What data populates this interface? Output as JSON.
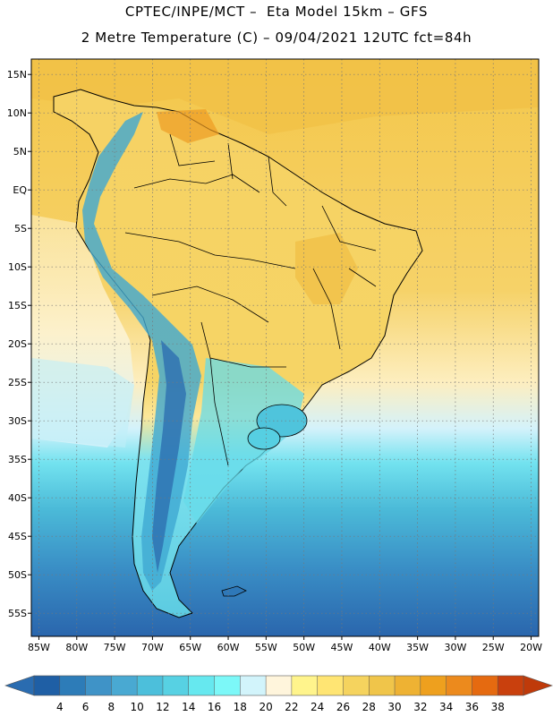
{
  "header": {
    "line1": "CPTEC/INPE/MCT –  Eta Model 15km – GFS",
    "line2": "2 Metre Temperature (C) – 09/04/2021 12UTC fct=84h"
  },
  "map": {
    "lat_range": [
      -58,
      17
    ],
    "lon_range": [
      -86,
      -19
    ],
    "lat_ticks": [
      {
        "value": 15,
        "label": "15N"
      },
      {
        "value": 10,
        "label": "10N"
      },
      {
        "value": 5,
        "label": "5N"
      },
      {
        "value": 0,
        "label": "EQ"
      },
      {
        "value": -5,
        "label": "5S"
      },
      {
        "value": -10,
        "label": "10S"
      },
      {
        "value": -15,
        "label": "15S"
      },
      {
        "value": -20,
        "label": "20S"
      },
      {
        "value": -25,
        "label": "25S"
      },
      {
        "value": -30,
        "label": "30S"
      },
      {
        "value": -35,
        "label": "35S"
      },
      {
        "value": -40,
        "label": "40S"
      },
      {
        "value": -45,
        "label": "45S"
      },
      {
        "value": -50,
        "label": "50S"
      },
      {
        "value": -55,
        "label": "55S"
      }
    ],
    "lon_ticks": [
      {
        "value": -85,
        "label": "85W"
      },
      {
        "value": -80,
        "label": "80W"
      },
      {
        "value": -75,
        "label": "75W"
      },
      {
        "value": -70,
        "label": "70W"
      },
      {
        "value": -65,
        "label": "65W"
      },
      {
        "value": -60,
        "label": "60W"
      },
      {
        "value": -55,
        "label": "55W"
      },
      {
        "value": -50,
        "label": "50W"
      },
      {
        "value": -45,
        "label": "45W"
      },
      {
        "value": -40,
        "label": "40W"
      },
      {
        "value": -35,
        "label": "35W"
      },
      {
        "value": -30,
        "label": "30W"
      },
      {
        "value": -25,
        "label": "25W"
      },
      {
        "value": -20,
        "label": "20W"
      }
    ]
  },
  "colorbar": {
    "labels": [
      "4",
      "6",
      "8",
      "10",
      "12",
      "14",
      "16",
      "18",
      "20",
      "22",
      "24",
      "26",
      "28",
      "30",
      "32",
      "34",
      "36",
      "38"
    ],
    "colors": [
      "#1f5fa5",
      "#2d7cb8",
      "#3f93c7",
      "#49a9d2",
      "#4cbfdb",
      "#57d1e3",
      "#66e8ef",
      "#7cf8f8",
      "#d2f4fb",
      "#fff5dc",
      "#fff48c",
      "#ffe573",
      "#f5d35e",
      "#f0c54a",
      "#eeb233",
      "#eea01e",
      "#ec8a1d",
      "#e56a10",
      "#c9400d"
    ],
    "left_arrow": "#2a6cb0",
    "right_arrow": "#bf3a0a"
  },
  "colors": {
    "ocean_warm": "#f3c84e",
    "ocean_mid": "#fdf2c4",
    "land": "#f5d062",
    "andes": "#55c8dc",
    "south_cold": "#2d73b6",
    "grid": "#777777"
  }
}
